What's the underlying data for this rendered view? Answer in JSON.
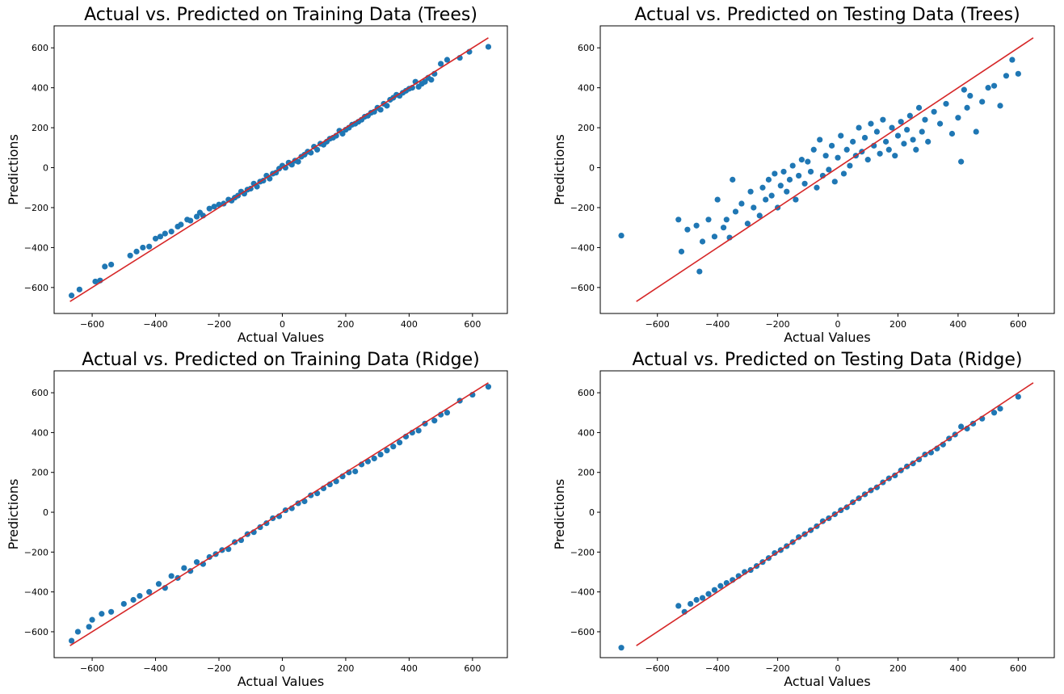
{
  "chart_data": [
    {
      "type": "scatter",
      "title": "Actual vs. Predicted on Training Data (Trees)",
      "xlabel": "Actual Values",
      "ylabel": "Predictions",
      "xlim": [
        -720,
        710
      ],
      "ylim": [
        -730,
        710
      ],
      "xticks": [
        -600,
        -400,
        -200,
        0,
        200,
        400,
        600
      ],
      "yticks": [
        -600,
        -400,
        -200,
        0,
        200,
        400,
        600
      ],
      "xticklabels": [
        "−600",
        "−400",
        "−200",
        "0",
        "200",
        "400",
        "600"
      ],
      "yticklabels": [
        "−600",
        "−400",
        "−200",
        "0",
        "200",
        "400",
        "600"
      ],
      "reference_line": {
        "x": [
          -670,
          650
        ],
        "y": [
          -670,
          650
        ],
        "color": "#d62728"
      },
      "point_color": "#1f77b4",
      "series": [
        {
          "x": [
            -665,
            -640,
            -590,
            -575,
            -560,
            -540,
            -480,
            -460,
            -440,
            -420,
            -400,
            -385,
            -370,
            -350,
            -330,
            -320,
            -300,
            -290,
            -270,
            -260,
            -250,
            -230,
            -215,
            -200,
            -185,
            -170,
            -160,
            -150,
            -140,
            -130,
            -120,
            -110,
            -100,
            -90,
            -80,
            -70,
            -60,
            -50,
            -40,
            -30,
            -20,
            -10,
            0,
            10,
            20,
            30,
            40,
            50,
            60,
            70,
            80,
            90,
            100,
            110,
            120,
            130,
            140,
            150,
            160,
            170,
            180,
            190,
            200,
            210,
            220,
            230,
            240,
            250,
            260,
            270,
            280,
            290,
            300,
            310,
            320,
            330,
            340,
            350,
            360,
            370,
            380,
            390,
            400,
            410,
            420,
            430,
            440,
            450,
            460,
            470,
            480,
            500,
            520,
            560,
            590,
            650
          ],
          "y": [
            -640,
            -610,
            -570,
            -565,
            -495,
            -485,
            -440,
            -420,
            -400,
            -395,
            -355,
            -345,
            -330,
            -320,
            -295,
            -285,
            -260,
            -265,
            -245,
            -225,
            -240,
            -205,
            -195,
            -185,
            -180,
            -160,
            -165,
            -150,
            -140,
            -120,
            -130,
            -110,
            -105,
            -80,
            -95,
            -70,
            -65,
            -40,
            -55,
            -30,
            -25,
            -5,
            10,
            0,
            25,
            15,
            35,
            30,
            55,
            65,
            80,
            75,
            105,
            90,
            120,
            115,
            130,
            145,
            150,
            160,
            185,
            170,
            190,
            200,
            215,
            220,
            230,
            240,
            255,
            260,
            275,
            280,
            300,
            290,
            320,
            310,
            340,
            350,
            365,
            360,
            375,
            385,
            395,
            400,
            430,
            405,
            420,
            430,
            450,
            440,
            470,
            520,
            540,
            550,
            580,
            605
          ]
        }
      ]
    },
    {
      "type": "scatter",
      "title": "Actual vs. Predicted on Testing Data (Trees)",
      "xlabel": "Actual Values",
      "ylabel": "Predictions",
      "xlim": [
        -790,
        720
      ],
      "ylim": [
        -730,
        710
      ],
      "xticks": [
        -600,
        -400,
        -200,
        0,
        200,
        400,
        600
      ],
      "yticks": [
        -600,
        -400,
        -200,
        0,
        200,
        400,
        600
      ],
      "xticklabels": [
        "−600",
        "−400",
        "−200",
        "0",
        "200",
        "400",
        "600"
      ],
      "yticklabels": [
        "−600",
        "−400",
        "−200",
        "0",
        "200",
        "400",
        "600"
      ],
      "reference_line": {
        "x": [
          -670,
          650
        ],
        "y": [
          -670,
          650
        ],
        "color": "#d62728"
      },
      "point_color": "#1f77b4",
      "series": [
        {
          "x": [
            -720,
            -530,
            -520,
            -500,
            -470,
            -460,
            -450,
            -430,
            -410,
            -400,
            -380,
            -370,
            -360,
            -350,
            -340,
            -320,
            -300,
            -290,
            -280,
            -260,
            -250,
            -240,
            -230,
            -220,
            -210,
            -200,
            -190,
            -180,
            -170,
            -160,
            -150,
            -140,
            -130,
            -120,
            -110,
            -100,
            -90,
            -80,
            -70,
            -60,
            -50,
            -40,
            -30,
            -20,
            -10,
            0,
            10,
            20,
            30,
            40,
            50,
            60,
            70,
            80,
            90,
            100,
            110,
            120,
            130,
            140,
            150,
            160,
            170,
            180,
            190,
            200,
            210,
            220,
            230,
            240,
            250,
            260,
            270,
            280,
            290,
            300,
            320,
            340,
            360,
            380,
            400,
            410,
            420,
            430,
            440,
            460,
            480,
            500,
            520,
            540,
            560,
            580,
            600
          ],
          "y": [
            -340,
            -260,
            -420,
            -310,
            -290,
            -520,
            -370,
            -260,
            -345,
            -160,
            -300,
            -260,
            -350,
            -60,
            -220,
            -180,
            -280,
            -120,
            -200,
            -240,
            -100,
            -160,
            -60,
            -140,
            -30,
            -200,
            -90,
            -20,
            -120,
            -60,
            10,
            -160,
            -40,
            40,
            -80,
            30,
            -20,
            90,
            -100,
            140,
            -40,
            60,
            -10,
            110,
            -70,
            50,
            160,
            -30,
            90,
            10,
            130,
            60,
            200,
            80,
            150,
            40,
            220,
            110,
            180,
            70,
            240,
            130,
            90,
            200,
            60,
            160,
            230,
            120,
            190,
            260,
            140,
            90,
            300,
            180,
            240,
            130,
            280,
            220,
            320,
            170,
            250,
            30,
            390,
            300,
            360,
            180,
            330,
            400,
            410,
            310,
            460,
            540,
            470
          ]
        }
      ]
    },
    {
      "type": "scatter",
      "title": "Actual vs. Predicted on Training Data (Ridge)",
      "xlabel": "Actual Values",
      "ylabel": "Predictions",
      "xlim": [
        -720,
        710
      ],
      "ylim": [
        -730,
        710
      ],
      "xticks": [
        -600,
        -400,
        -200,
        0,
        200,
        400,
        600
      ],
      "yticks": [
        -600,
        -400,
        -200,
        0,
        200,
        400,
        600
      ],
      "xticklabels": [
        "−600",
        "−400",
        "−200",
        "0",
        "200",
        "400",
        "600"
      ],
      "yticklabels": [
        "−600",
        "−400",
        "−200",
        "0",
        "200",
        "400",
        "600"
      ],
      "reference_line": {
        "x": [
          -670,
          650
        ],
        "y": [
          -670,
          650
        ],
        "color": "#d62728"
      },
      "point_color": "#1f77b4",
      "series": [
        {
          "x": [
            -665,
            -645,
            -610,
            -600,
            -570,
            -540,
            -500,
            -470,
            -450,
            -420,
            -390,
            -370,
            -350,
            -330,
            -310,
            -290,
            -270,
            -250,
            -230,
            -210,
            -190,
            -170,
            -150,
            -130,
            -110,
            -90,
            -70,
            -50,
            -30,
            -10,
            10,
            30,
            50,
            70,
            90,
            110,
            130,
            150,
            170,
            190,
            210,
            230,
            250,
            270,
            290,
            310,
            330,
            350,
            370,
            390,
            410,
            430,
            450,
            480,
            500,
            520,
            560,
            600,
            650
          ],
          "y": [
            -645,
            -600,
            -575,
            -540,
            -510,
            -500,
            -460,
            -440,
            -420,
            -400,
            -360,
            -380,
            -320,
            -330,
            -280,
            -295,
            -250,
            -260,
            -225,
            -210,
            -190,
            -185,
            -150,
            -140,
            -110,
            -100,
            -75,
            -55,
            -30,
            -20,
            10,
            20,
            45,
            55,
            85,
            95,
            120,
            140,
            155,
            180,
            200,
            205,
            240,
            255,
            270,
            290,
            310,
            330,
            350,
            380,
            400,
            410,
            445,
            460,
            490,
            500,
            560,
            590,
            630
          ]
        }
      ]
    },
    {
      "type": "scatter",
      "title": "Actual vs. Predicted on Testing Data (Ridge)",
      "xlabel": "Actual Values",
      "ylabel": "Predictions",
      "xlim": [
        -790,
        720
      ],
      "ylim": [
        -730,
        710
      ],
      "xticks": [
        -600,
        -400,
        -200,
        0,
        200,
        400,
        600
      ],
      "yticks": [
        -600,
        -400,
        -200,
        0,
        200,
        400,
        600
      ],
      "xticklabels": [
        "−600",
        "−400",
        "−200",
        "0",
        "200",
        "400",
        "600"
      ],
      "yticklabels": [
        "−600",
        "−400",
        "−200",
        "0",
        "200",
        "400",
        "600"
      ],
      "reference_line": {
        "x": [
          -670,
          650
        ],
        "y": [
          -670,
          650
        ],
        "color": "#d62728"
      },
      "point_color": "#1f77b4",
      "series": [
        {
          "x": [
            -720,
            -530,
            -510,
            -490,
            -470,
            -450,
            -430,
            -410,
            -390,
            -370,
            -350,
            -330,
            -310,
            -290,
            -270,
            -250,
            -230,
            -210,
            -190,
            -170,
            -150,
            -130,
            -110,
            -90,
            -70,
            -50,
            -30,
            -10,
            10,
            30,
            50,
            70,
            90,
            110,
            130,
            150,
            170,
            190,
            210,
            230,
            250,
            270,
            290,
            310,
            330,
            350,
            370,
            390,
            410,
            430,
            450,
            480,
            520,
            540,
            600
          ],
          "y": [
            -680,
            -470,
            -500,
            -460,
            -440,
            -430,
            -410,
            -390,
            -370,
            -355,
            -340,
            -320,
            -300,
            -290,
            -270,
            -250,
            -230,
            -205,
            -190,
            -170,
            -150,
            -125,
            -110,
            -90,
            -70,
            -45,
            -30,
            -10,
            10,
            25,
            50,
            70,
            90,
            110,
            125,
            150,
            170,
            185,
            210,
            230,
            245,
            265,
            290,
            300,
            320,
            340,
            370,
            390,
            430,
            420,
            445,
            470,
            500,
            520,
            580
          ]
        }
      ]
    }
  ]
}
